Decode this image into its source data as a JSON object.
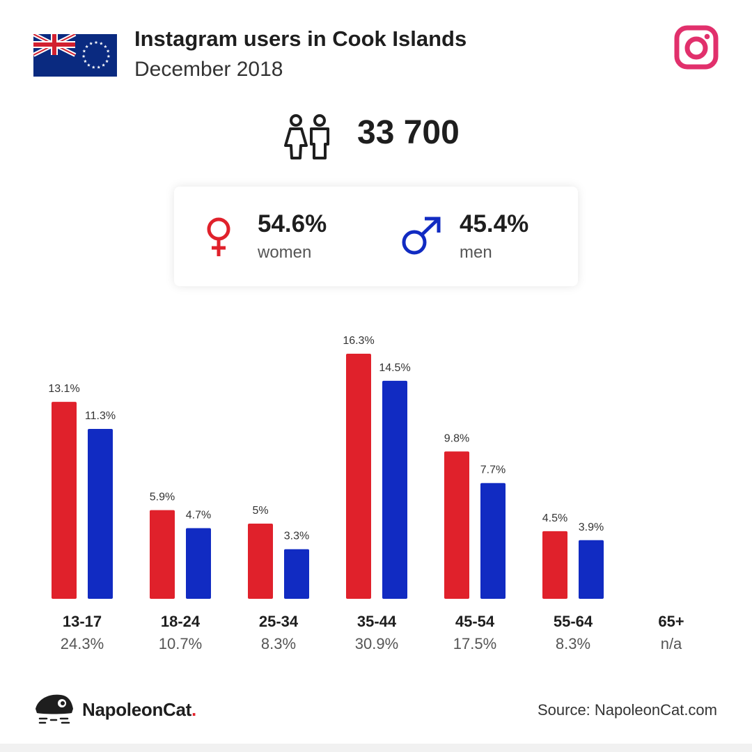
{
  "header": {
    "title": "Instagram users in Cook Islands",
    "subtitle": "December 2018"
  },
  "summary": {
    "total_users": "33 700"
  },
  "gender": {
    "women_pct": "54.6%",
    "women_label": "women",
    "men_pct": "45.4%",
    "men_label": "men"
  },
  "colors": {
    "women": "#e0212b",
    "men": "#112bc2",
    "instagram": "#e1306c"
  },
  "icons": {
    "flag": "cook-islands-flag-icon",
    "instagram": "instagram-icon",
    "people": "people-icon",
    "female": "female-symbol-icon",
    "male": "male-symbol-icon",
    "logo": "napoleoncat-logo-icon"
  },
  "chart_data": {
    "type": "bar",
    "categories": [
      "13-17",
      "18-24",
      "25-34",
      "35-44",
      "45-54",
      "55-64",
      "65+"
    ],
    "category_totals": [
      "24.3%",
      "10.7%",
      "8.3%",
      "30.9%",
      "17.5%",
      "8.3%",
      "n/a"
    ],
    "series": [
      {
        "values": [
          13.1,
          5.9,
          5,
          16.3,
          9.8,
          4.5,
          null
        ],
        "labels": [
          "13.1%",
          "5.9%",
          "5%",
          "16.3%",
          "9.8%",
          "4.5%",
          ""
        ]
      },
      {
        "values": [
          11.3,
          4.7,
          3.3,
          14.5,
          7.7,
          3.9,
          null
        ],
        "labels": [
          "11.3%",
          "4.7%",
          "3.3%",
          "14.5%",
          "7.7%",
          "3.9%",
          ""
        ]
      }
    ],
    "title": "",
    "xlabel": "",
    "ylabel": "",
    "ylim": [
      0,
      16.3
    ],
    "grid": false,
    "legend": "none"
  },
  "footer": {
    "brand": "NapoleonCat",
    "brand_dot": ".",
    "source": "Source: NapoleonCat.com"
  }
}
